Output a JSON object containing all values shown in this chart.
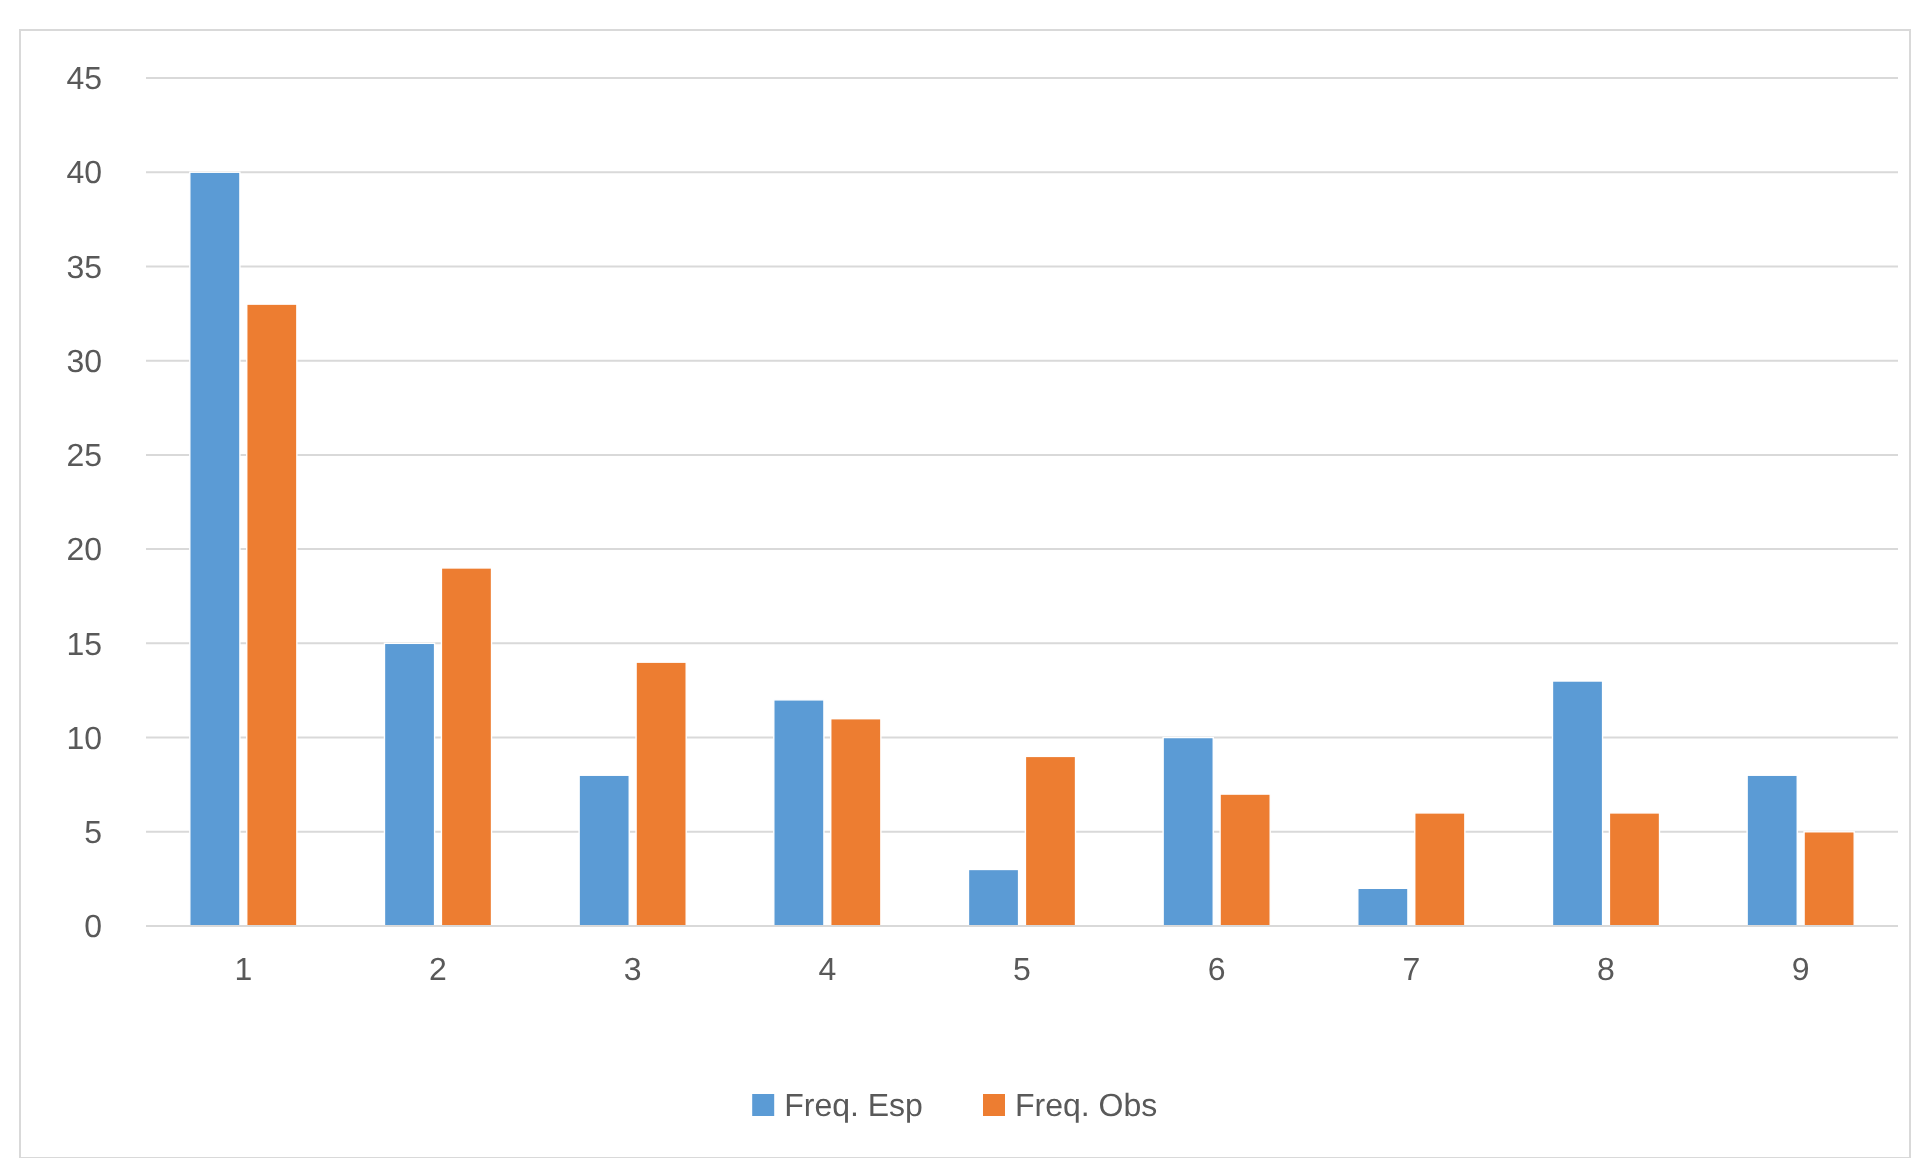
{
  "chart_data": {
    "type": "bar",
    "categories": [
      "1",
      "2",
      "3",
      "4",
      "5",
      "6",
      "7",
      "8",
      "9"
    ],
    "series": [
      {
        "name": "Freq. Esp",
        "color": "#5b9bd5",
        "values": [
          40,
          15,
          8,
          12,
          3,
          10,
          2,
          13,
          8
        ]
      },
      {
        "name": "Freq. Obs",
        "color": "#ed7d31",
        "values": [
          33,
          19,
          14,
          11,
          9,
          7,
          6,
          6,
          5
        ]
      }
    ],
    "ylim": [
      0,
      45
    ],
    "yticks": [
      0,
      5,
      10,
      15,
      20,
      25,
      30,
      35,
      40,
      45
    ],
    "grid": "y",
    "legend": "bottom"
  }
}
